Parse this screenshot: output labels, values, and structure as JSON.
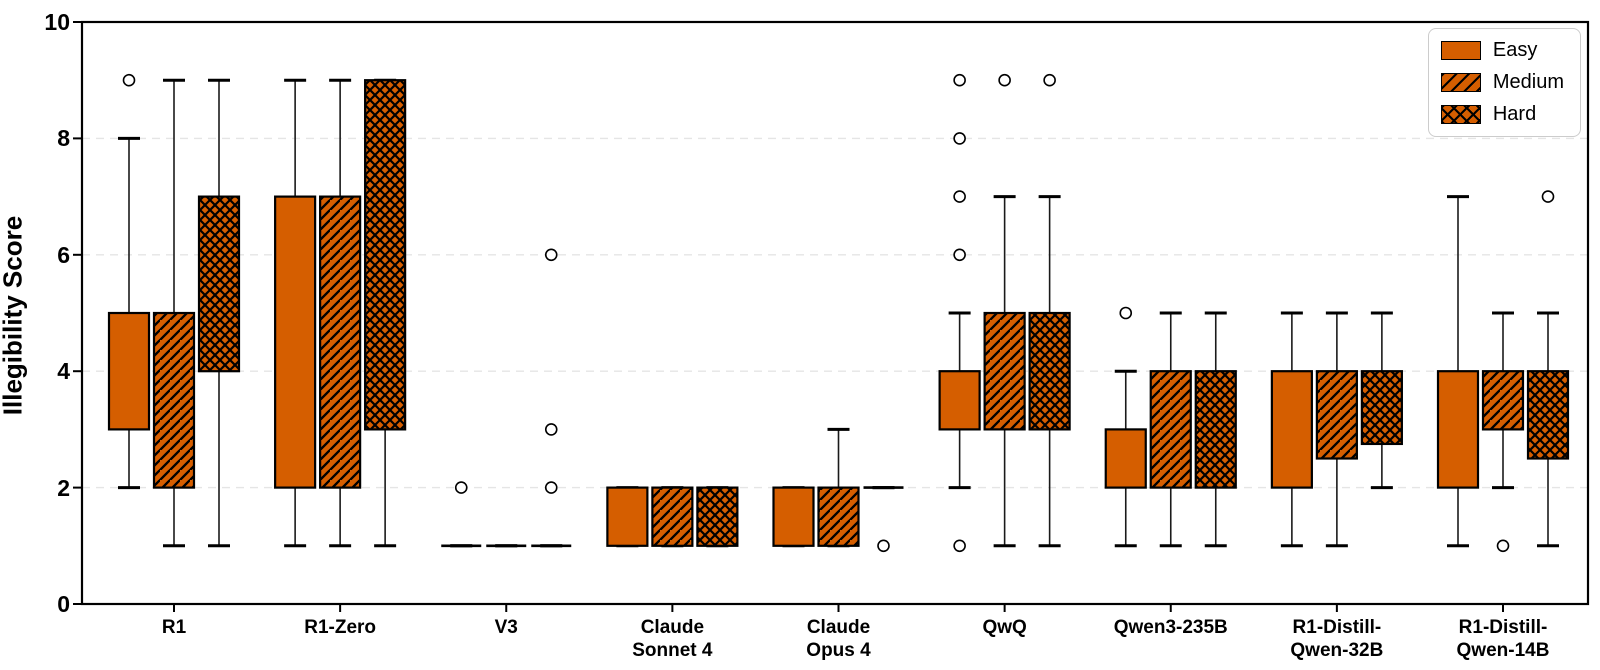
{
  "chart_data": {
    "type": "boxplot",
    "title": "",
    "ylabel": "Illegibility Score",
    "xlabel": "",
    "ylim": [
      0,
      10
    ],
    "yticks": [
      0,
      2,
      4,
      6,
      8,
      10
    ],
    "grid": "horizontal dashed at 2,4,6,8",
    "legend_position": "upper right",
    "colors": {
      "box_fill": "#D55E00",
      "box_edge": "#000000",
      "whisker": "#1a1a1a",
      "gridline": "#e5e5e5",
      "outlier_fill": "#ffffff",
      "background": "#ffffff"
    },
    "legend": {
      "entries": [
        {
          "label": "Easy",
          "pattern": "solid"
        },
        {
          "label": "Medium",
          "pattern": "diagonal-hatch"
        },
        {
          "label": "Hard",
          "pattern": "crosshatch"
        }
      ]
    },
    "categories": [
      "R1",
      "R1-Zero",
      "V3",
      "Claude\nSonnet 4",
      "Claude\nOpus 4",
      "QwQ",
      "Qwen3-235B",
      "R1-Distill-\nQwen-32B",
      "R1-Distill-\nQwen-14B"
    ],
    "groups": [
      {
        "label": "R1",
        "easy": {
          "whisker_low": 2,
          "q1": 3,
          "q3": 5,
          "whisker_high": 8,
          "outliers": [
            9
          ]
        },
        "medium": {
          "whisker_low": 1,
          "q1": 2,
          "q3": 5,
          "whisker_high": 9,
          "outliers": []
        },
        "hard": {
          "whisker_low": 1,
          "q1": 4,
          "q3": 7,
          "whisker_high": 9,
          "outliers": []
        }
      },
      {
        "label": "R1-Zero",
        "easy": {
          "whisker_low": 1,
          "q1": 2,
          "q3": 7,
          "whisker_high": 9,
          "outliers": []
        },
        "medium": {
          "whisker_low": 1,
          "q1": 2,
          "q3": 7,
          "whisker_high": 9,
          "outliers": []
        },
        "hard": {
          "whisker_low": 1,
          "q1": 3,
          "q3": 9,
          "whisker_high": 9,
          "outliers": []
        }
      },
      {
        "label": "V3",
        "easy": {
          "whisker_low": 1,
          "q1": 1,
          "q3": 1,
          "whisker_high": 1,
          "outliers": [
            2
          ]
        },
        "medium": {
          "whisker_low": 1,
          "q1": 1,
          "q3": 1,
          "whisker_high": 1,
          "outliers": []
        },
        "hard": {
          "whisker_low": 1,
          "q1": 1,
          "q3": 1,
          "whisker_high": 1,
          "outliers": [
            2,
            3,
            6
          ]
        }
      },
      {
        "label": "Claude\nSonnet 4",
        "easy": {
          "whisker_low": 1,
          "q1": 1,
          "q3": 2,
          "whisker_high": 2,
          "outliers": []
        },
        "medium": {
          "whisker_low": 1,
          "q1": 1,
          "q3": 2,
          "whisker_high": 2,
          "outliers": []
        },
        "hard": {
          "whisker_low": 1,
          "q1": 1,
          "q3": 2,
          "whisker_high": 2,
          "outliers": []
        }
      },
      {
        "label": "Claude\nOpus 4",
        "easy": {
          "whisker_low": 1,
          "q1": 1,
          "q3": 2,
          "whisker_high": 2,
          "outliers": []
        },
        "medium": {
          "whisker_low": 1,
          "q1": 1,
          "q3": 2,
          "whisker_high": 3,
          "outliers": []
        },
        "hard": {
          "whisker_low": 2,
          "q1": 2,
          "q3": 2,
          "whisker_high": 2,
          "outliers": [
            1
          ]
        }
      },
      {
        "label": "QwQ",
        "easy": {
          "whisker_low": 2,
          "q1": 3,
          "q3": 4,
          "whisker_high": 5,
          "outliers": [
            1,
            6,
            7,
            8,
            9
          ]
        },
        "medium": {
          "whisker_low": 1,
          "q1": 3,
          "q3": 5,
          "whisker_high": 7,
          "outliers": [
            9
          ]
        },
        "hard": {
          "whisker_low": 1,
          "q1": 3,
          "q3": 5,
          "whisker_high": 7,
          "outliers": [
            9
          ]
        }
      },
      {
        "label": "Qwen3-235B",
        "easy": {
          "whisker_low": 1,
          "q1": 2,
          "q3": 3,
          "whisker_high": 4,
          "outliers": [
            5
          ]
        },
        "medium": {
          "whisker_low": 1,
          "q1": 2,
          "q3": 4,
          "whisker_high": 5,
          "outliers": []
        },
        "hard": {
          "whisker_low": 1,
          "q1": 2,
          "q3": 4,
          "whisker_high": 5,
          "outliers": []
        }
      },
      {
        "label": "R1-Distill-\nQwen-32B",
        "easy": {
          "whisker_low": 1,
          "q1": 2,
          "q3": 4,
          "whisker_high": 5,
          "outliers": []
        },
        "medium": {
          "whisker_low": 1,
          "q1": 2.5,
          "q3": 4,
          "whisker_high": 5,
          "outliers": []
        },
        "hard": {
          "whisker_low": 2,
          "q1": 2.75,
          "q3": 4,
          "whisker_high": 5,
          "outliers": []
        }
      },
      {
        "label": "R1-Distill-\nQwen-14B",
        "easy": {
          "whisker_low": 1,
          "q1": 2,
          "q3": 4,
          "whisker_high": 7,
          "outliers": []
        },
        "medium": {
          "whisker_low": 2,
          "q1": 3,
          "q3": 4,
          "whisker_high": 5,
          "outliers": [
            1
          ]
        },
        "hard": {
          "whisker_low": 1,
          "q1": 2.5,
          "q3": 4,
          "whisker_high": 5,
          "outliers": [
            7
          ]
        }
      }
    ]
  }
}
